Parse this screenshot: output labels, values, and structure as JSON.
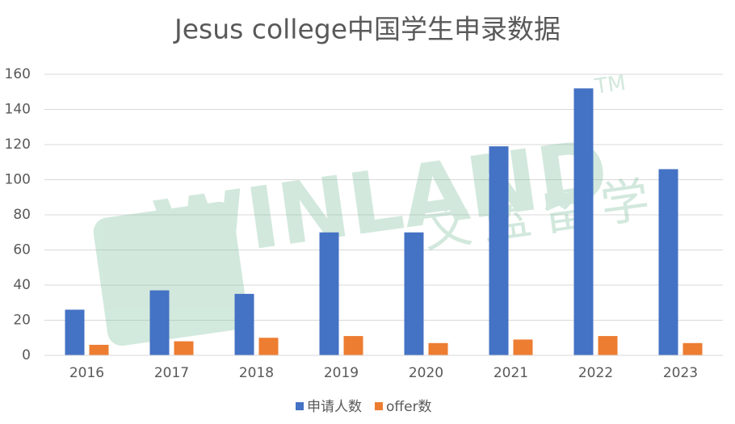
{
  "chart_data": {
    "type": "bar",
    "title": "Jesus college中国学生申录数据",
    "categories": [
      "2016",
      "2017",
      "2018",
      "2019",
      "2020",
      "2021",
      "2022",
      "2023"
    ],
    "series": [
      {
        "name": "申请人数",
        "color": "#4472c4",
        "values": [
          26,
          37,
          35,
          70,
          70,
          119,
          152,
          106
        ]
      },
      {
        "name": "offer数",
        "color": "#ed7d31",
        "values": [
          6,
          8,
          10,
          11,
          7,
          9,
          11,
          7
        ]
      }
    ],
    "ylim": [
      0,
      160
    ],
    "yticks": [
      0,
      20,
      40,
      60,
      80,
      100,
      120,
      140,
      160
    ],
    "grid": true,
    "legend": "bottom",
    "watermark": {
      "brand": "WINLAND",
      "name": "文蓝留学",
      "mark": "TM"
    }
  }
}
